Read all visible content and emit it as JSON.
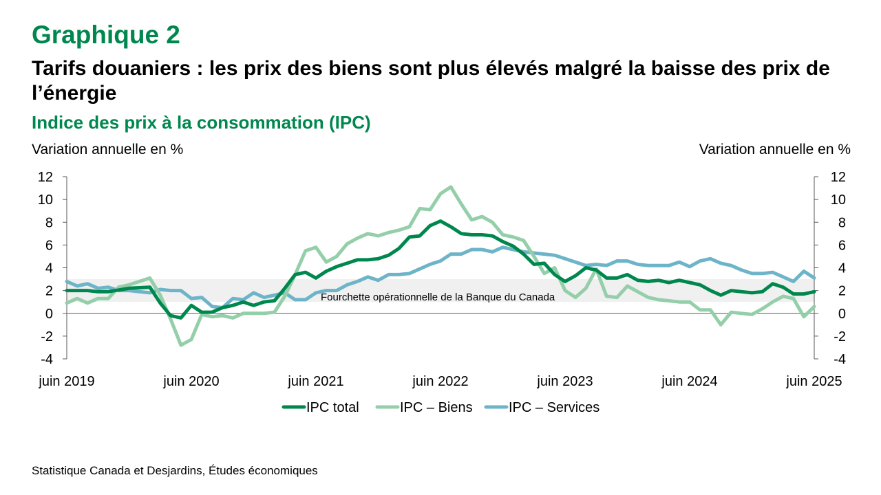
{
  "header": {
    "figure_number": "Graphique 2",
    "title": "Tarifs douaniers : les prix des biens sont plus élevés malgré la baisse des prix de l’énergie",
    "subtitle": "Indice des prix à la consommation (IPC)"
  },
  "source": "Statistique Canada et Desjardins, Études économiques",
  "chart_data": {
    "type": "line",
    "ylabel_left": "Variation annuelle en %",
    "ylabel_right": "Variation annuelle en %",
    "ylim": [
      -4,
      12
    ],
    "yticks": [
      -4,
      -2,
      0,
      2,
      4,
      6,
      8,
      10,
      12
    ],
    "y_tick_labels": [
      "-4",
      "-2",
      "0",
      "2",
      "4",
      "6",
      "8",
      "10",
      "12"
    ],
    "x_tick_labels": [
      "juin 2019",
      "juin 2020",
      "juin 2021",
      "juin 2022",
      "juin 2023",
      "juin 2024",
      "juin 2025"
    ],
    "x_start": "2019-06",
    "x_end": "2025-06",
    "grid": false,
    "legend_position": "bottom",
    "band": {
      "label": "Fourchette opérationnelle de la Banque du Canada",
      "from": 1,
      "to": 3,
      "color": "#f0f0f0"
    },
    "series": [
      {
        "name": "IPC total",
        "color": "#00874e",
        "points": [
          [
            "2019-06",
            2.0
          ],
          [
            "2019-08",
            2.0
          ],
          [
            "2019-09",
            1.9
          ],
          [
            "2019-10",
            1.9
          ],
          [
            "2019-12",
            2.2
          ],
          [
            "2020-02",
            2.3
          ],
          [
            "2020-03",
            0.9
          ],
          [
            "2020-04",
            -0.2
          ],
          [
            "2020-05",
            -0.4
          ],
          [
            "2020-06",
            0.7
          ],
          [
            "2020-07",
            0.1
          ],
          [
            "2020-08",
            0.1
          ],
          [
            "2020-09",
            0.5
          ],
          [
            "2020-10",
            0.7
          ],
          [
            "2020-11",
            1.0
          ],
          [
            "2020-12",
            0.7
          ],
          [
            "2021-01",
            1.0
          ],
          [
            "2021-02",
            1.1
          ],
          [
            "2021-03",
            2.2
          ],
          [
            "2021-04",
            3.4
          ],
          [
            "2021-05",
            3.6
          ],
          [
            "2021-06",
            3.1
          ],
          [
            "2021-07",
            3.7
          ],
          [
            "2021-08",
            4.1
          ],
          [
            "2021-09",
            4.4
          ],
          [
            "2021-10",
            4.7
          ],
          [
            "2021-11",
            4.7
          ],
          [
            "2021-12",
            4.8
          ],
          [
            "2022-01",
            5.1
          ],
          [
            "2022-02",
            5.7
          ],
          [
            "2022-03",
            6.7
          ],
          [
            "2022-04",
            6.8
          ],
          [
            "2022-05",
            7.7
          ],
          [
            "2022-06",
            8.1
          ],
          [
            "2022-07",
            7.6
          ],
          [
            "2022-08",
            7.0
          ],
          [
            "2022-09",
            6.9
          ],
          [
            "2022-10",
            6.9
          ],
          [
            "2022-11",
            6.8
          ],
          [
            "2022-12",
            6.3
          ],
          [
            "2023-01",
            5.9
          ],
          [
            "2023-02",
            5.2
          ],
          [
            "2023-03",
            4.3
          ],
          [
            "2023-04",
            4.4
          ],
          [
            "2023-05",
            3.4
          ],
          [
            "2023-06",
            2.8
          ],
          [
            "2023-07",
            3.3
          ],
          [
            "2023-08",
            4.0
          ],
          [
            "2023-09",
            3.8
          ],
          [
            "2023-10",
            3.1
          ],
          [
            "2023-11",
            3.1
          ],
          [
            "2023-12",
            3.4
          ],
          [
            "2024-01",
            2.9
          ],
          [
            "2024-02",
            2.8
          ],
          [
            "2024-03",
            2.9
          ],
          [
            "2024-04",
            2.7
          ],
          [
            "2024-05",
            2.9
          ],
          [
            "2024-06",
            2.7
          ],
          [
            "2024-07",
            2.5
          ],
          [
            "2024-08",
            2.0
          ],
          [
            "2024-09",
            1.6
          ],
          [
            "2024-10",
            2.0
          ],
          [
            "2024-11",
            1.9
          ],
          [
            "2024-12",
            1.8
          ],
          [
            "2025-01",
            1.9
          ],
          [
            "2025-02",
            2.6
          ],
          [
            "2025-03",
            2.3
          ],
          [
            "2025-04",
            1.7
          ],
          [
            "2025-05",
            1.7
          ],
          [
            "2025-06",
            1.9
          ]
        ]
      },
      {
        "name": "IPC – Biens",
        "color": "#94cfa9",
        "points": [
          [
            "2019-06",
            0.9
          ],
          [
            "2019-07",
            1.3
          ],
          [
            "2019-08",
            0.9
          ],
          [
            "2019-09",
            1.3
          ],
          [
            "2019-10",
            1.3
          ],
          [
            "2019-11",
            2.3
          ],
          [
            "2019-12",
            2.5
          ],
          [
            "2020-01",
            2.8
          ],
          [
            "2020-02",
            3.1
          ],
          [
            "2020-03",
            1.6
          ],
          [
            "2020-04",
            -0.5
          ],
          [
            "2020-05",
            -2.8
          ],
          [
            "2020-06",
            -2.3
          ],
          [
            "2020-07",
            -0.1
          ],
          [
            "2020-08",
            -0.3
          ],
          [
            "2020-09",
            -0.2
          ],
          [
            "2020-10",
            -0.4
          ],
          [
            "2020-11",
            0.0
          ],
          [
            "2020-12",
            0.0
          ],
          [
            "2021-01",
            0.0
          ],
          [
            "2021-02",
            0.1
          ],
          [
            "2021-03",
            1.5
          ],
          [
            "2021-04",
            3.4
          ],
          [
            "2021-05",
            5.5
          ],
          [
            "2021-06",
            5.8
          ],
          [
            "2021-07",
            4.5
          ],
          [
            "2021-08",
            5.0
          ],
          [
            "2021-09",
            6.1
          ],
          [
            "2021-10",
            6.6
          ],
          [
            "2021-11",
            7.0
          ],
          [
            "2021-12",
            6.8
          ],
          [
            "2022-01",
            7.1
          ],
          [
            "2022-02",
            7.3
          ],
          [
            "2022-03",
            7.6
          ],
          [
            "2022-04",
            9.2
          ],
          [
            "2022-05",
            9.1
          ],
          [
            "2022-06",
            10.5
          ],
          [
            "2022-07",
            11.1
          ],
          [
            "2022-08",
            9.6
          ],
          [
            "2022-09",
            8.2
          ],
          [
            "2022-10",
            8.5
          ],
          [
            "2022-11",
            8.0
          ],
          [
            "2022-12",
            6.9
          ],
          [
            "2023-01",
            6.7
          ],
          [
            "2023-02",
            6.4
          ],
          [
            "2023-03",
            5.0
          ],
          [
            "2023-04",
            3.5
          ],
          [
            "2023-05",
            4.0
          ],
          [
            "2023-06",
            2.0
          ],
          [
            "2023-07",
            1.4
          ],
          [
            "2023-08",
            2.2
          ],
          [
            "2023-09",
            3.9
          ],
          [
            "2023-10",
            1.5
          ],
          [
            "2023-11",
            1.4
          ],
          [
            "2023-12",
            2.4
          ],
          [
            "2024-01",
            1.9
          ],
          [
            "2024-02",
            1.4
          ],
          [
            "2024-03",
            1.2
          ],
          [
            "2024-04",
            1.1
          ],
          [
            "2024-05",
            1.0
          ],
          [
            "2024-06",
            1.0
          ],
          [
            "2024-07",
            0.3
          ],
          [
            "2024-08",
            0.3
          ],
          [
            "2024-09",
            -1.0
          ],
          [
            "2024-10",
            0.1
          ],
          [
            "2024-11",
            0.0
          ],
          [
            "2024-12",
            -0.1
          ],
          [
            "2025-01",
            0.4
          ],
          [
            "2025-02",
            1.0
          ],
          [
            "2025-03",
            1.5
          ],
          [
            "2025-04",
            1.3
          ],
          [
            "2025-05",
            -0.3
          ],
          [
            "2025-06",
            0.6
          ]
        ]
      },
      {
        "name": "IPC – Services",
        "color": "#6db4c9",
        "points": [
          [
            "2019-06",
            2.8
          ],
          [
            "2019-07",
            2.4
          ],
          [
            "2019-08",
            2.6
          ],
          [
            "2019-09",
            2.2
          ],
          [
            "2019-10",
            2.3
          ],
          [
            "2019-11",
            2.0
          ],
          [
            "2019-12",
            2.0
          ],
          [
            "2020-01",
            1.9
          ],
          [
            "2020-02",
            1.8
          ],
          [
            "2020-03",
            2.1
          ],
          [
            "2020-04",
            2.0
          ],
          [
            "2020-05",
            2.0
          ],
          [
            "2020-06",
            1.3
          ],
          [
            "2020-07",
            1.4
          ],
          [
            "2020-08",
            0.6
          ],
          [
            "2020-09",
            0.5
          ],
          [
            "2020-10",
            1.3
          ],
          [
            "2020-11",
            1.2
          ],
          [
            "2020-12",
            1.8
          ],
          [
            "2021-01",
            1.4
          ],
          [
            "2021-02",
            1.6
          ],
          [
            "2021-03",
            1.8
          ],
          [
            "2021-04",
            1.2
          ],
          [
            "2021-05",
            1.2
          ],
          [
            "2021-06",
            1.8
          ],
          [
            "2021-07",
            2.0
          ],
          [
            "2021-08",
            2.0
          ],
          [
            "2021-09",
            2.5
          ],
          [
            "2021-10",
            2.8
          ],
          [
            "2021-11",
            3.2
          ],
          [
            "2021-12",
            2.9
          ],
          [
            "2022-01",
            3.4
          ],
          [
            "2022-02",
            3.4
          ],
          [
            "2022-03",
            3.5
          ],
          [
            "2022-04",
            3.9
          ],
          [
            "2022-05",
            4.3
          ],
          [
            "2022-06",
            4.6
          ],
          [
            "2022-07",
            5.2
          ],
          [
            "2022-08",
            5.2
          ],
          [
            "2022-09",
            5.6
          ],
          [
            "2022-10",
            5.6
          ],
          [
            "2022-11",
            5.4
          ],
          [
            "2022-12",
            5.8
          ],
          [
            "2023-01",
            5.6
          ],
          [
            "2023-02",
            5.4
          ],
          [
            "2023-03",
            5.3
          ],
          [
            "2023-04",
            5.2
          ],
          [
            "2023-05",
            5.1
          ],
          [
            "2023-06",
            4.8
          ],
          [
            "2023-07",
            4.5
          ],
          [
            "2023-08",
            4.2
          ],
          [
            "2023-09",
            4.3
          ],
          [
            "2023-10",
            4.2
          ],
          [
            "2023-11",
            4.6
          ],
          [
            "2023-12",
            4.6
          ],
          [
            "2024-01",
            4.3
          ],
          [
            "2024-02",
            4.2
          ],
          [
            "2024-03",
            4.2
          ],
          [
            "2024-04",
            4.2
          ],
          [
            "2024-05",
            4.5
          ],
          [
            "2024-06",
            4.1
          ],
          [
            "2024-07",
            4.6
          ],
          [
            "2024-08",
            4.8
          ],
          [
            "2024-09",
            4.4
          ],
          [
            "2024-10",
            4.2
          ],
          [
            "2024-11",
            3.8
          ],
          [
            "2024-12",
            3.5
          ],
          [
            "2025-01",
            3.5
          ],
          [
            "2025-02",
            3.6
          ],
          [
            "2025-03",
            3.2
          ],
          [
            "2025-04",
            2.8
          ],
          [
            "2025-05",
            3.7
          ],
          [
            "2025-06",
            3.1
          ]
        ]
      }
    ]
  }
}
